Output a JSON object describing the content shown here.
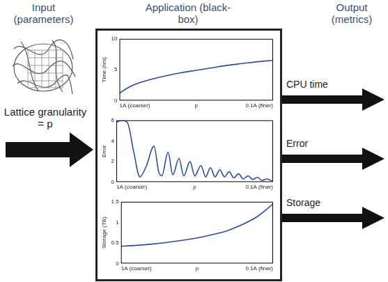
{
  "headers": [
    "Input (parameters)",
    "Application (black-box)",
    "Output (metrics)"
  ],
  "input_label": "Lattice granularity = p",
  "chart_data": [
    {
      "type": "line",
      "y_label": "Time (hrs)",
      "color": "#2b4ba3",
      "grid": false,
      "x": [
        0,
        0.05,
        0.1,
        0.2,
        0.3,
        0.4,
        0.5,
        0.6,
        0.7,
        0.8,
        0.9,
        1.0
      ],
      "values": [
        1.2,
        2.0,
        2.6,
        3.4,
        4.0,
        4.5,
        4.9,
        5.3,
        5.7,
        6.0,
        6.3,
        6.5
      ],
      "xlim": [
        0,
        1
      ],
      "xticks": [
        {
          "value": 0,
          "label": "1A (coarser)"
        },
        {
          "value": 0.5,
          "label": "p"
        },
        {
          "value": 1,
          "label": "0.1A (finer)"
        }
      ],
      "ylim": [
        0,
        10
      ],
      "yticks": [
        0,
        5,
        10
      ]
    },
    {
      "type": "line",
      "y_label": "Error",
      "color": "#2b4ba3",
      "grid": false,
      "x": [
        0,
        0.03,
        0.07,
        0.11,
        0.15,
        0.19,
        0.24,
        0.27,
        0.29,
        0.33,
        0.36,
        0.4,
        0.43,
        0.47,
        0.5,
        0.54,
        0.57,
        0.6,
        0.63,
        0.66,
        0.69,
        0.72,
        0.75,
        0.78,
        0.81,
        0.84,
        0.87,
        0.9,
        0.93,
        0.96,
        1.0
      ],
      "values": [
        5.8,
        6.0,
        5.8,
        3.0,
        0.5,
        1.5,
        3.5,
        1.0,
        0.6,
        2.9,
        0.7,
        2.3,
        0.6,
        2.0,
        0.6,
        1.6,
        0.5,
        1.4,
        0.5,
        1.2,
        0.5,
        1.0,
        0.4,
        0.8,
        0.3,
        0.6,
        0.25,
        0.45,
        0.15,
        0.3,
        0.05
      ],
      "xlim": [
        0,
        1
      ],
      "xticks": [
        {
          "value": 0,
          "label": "1A (coarser)"
        },
        {
          "value": 0.5,
          "label": "p"
        },
        {
          "value": 1,
          "label": "0.1A (finer)"
        }
      ],
      "ylim": [
        0,
        6
      ],
      "yticks": [
        0,
        2,
        4,
        6
      ]
    },
    {
      "type": "line",
      "y_label": "Storage (TB)",
      "color": "#2b4ba3",
      "grid": false,
      "x": [
        0,
        0.1,
        0.2,
        0.3,
        0.4,
        0.5,
        0.6,
        0.7,
        0.8,
        0.9,
        1.0
      ],
      "values": [
        0.42,
        0.44,
        0.47,
        0.51,
        0.56,
        0.62,
        0.7,
        0.8,
        0.95,
        1.15,
        1.45
      ],
      "xlim": [
        0,
        1
      ],
      "xticks": [
        {
          "value": 0,
          "label": "1A (coarser)"
        },
        {
          "value": 0.5,
          "label": "p"
        },
        {
          "value": 1,
          "label": "0.1A (finer)"
        }
      ],
      "ylim": [
        0,
        1.5
      ],
      "yticks": [
        0,
        0.5,
        1,
        1.5
      ]
    }
  ],
  "outputs": [
    "CPU time",
    "Error",
    "Storage"
  ]
}
